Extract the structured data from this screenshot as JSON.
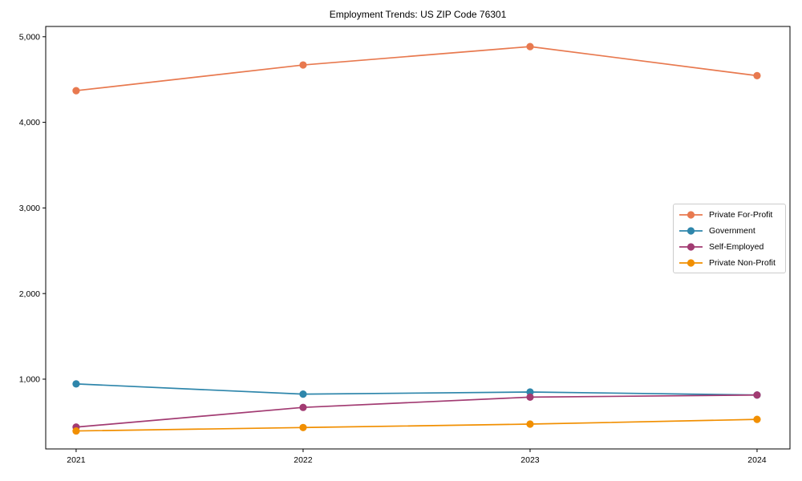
{
  "title": "Employment Trends: US ZIP Code 76301",
  "chart_data": {
    "type": "line",
    "title": "Employment Trends: US ZIP Code 76301",
    "xlabel": "",
    "ylabel": "",
    "x": [
      2021,
      2022,
      2023,
      2024
    ],
    "x_tick_labels": [
      "2021",
      "2022",
      "2023",
      "2024"
    ],
    "series": [
      {
        "name": "Private For-Profit",
        "color": "#E8794F",
        "values": [
          4370,
          4670,
          4885,
          4545
        ]
      },
      {
        "name": "Government",
        "color": "#2E86AB",
        "values": [
          945,
          825,
          850,
          815
        ]
      },
      {
        "name": "Self-Employed",
        "color": "#A23B72",
        "values": [
          440,
          670,
          790,
          815
        ]
      },
      {
        "name": "Private Non-Profit",
        "color": "#F18F01",
        "values": [
          395,
          435,
          475,
          530
        ]
      }
    ],
    "xlim": [
      2020.866,
      2024.145
    ],
    "ylim": [
      185,
      5120
    ],
    "yticks": [
      1000,
      2000,
      3000,
      4000,
      5000
    ],
    "ytick_labels": [
      "1,000",
      "2,000",
      "3,000",
      "4,000",
      "5,000"
    ],
    "grid": false,
    "legend": {
      "position": "center-right",
      "entries": [
        "Private For-Profit",
        "Government",
        "Self-Employed",
        "Private Non-Profit"
      ]
    },
    "marker": "circle",
    "background": "#ffffff",
    "spine_color": "#000000"
  }
}
